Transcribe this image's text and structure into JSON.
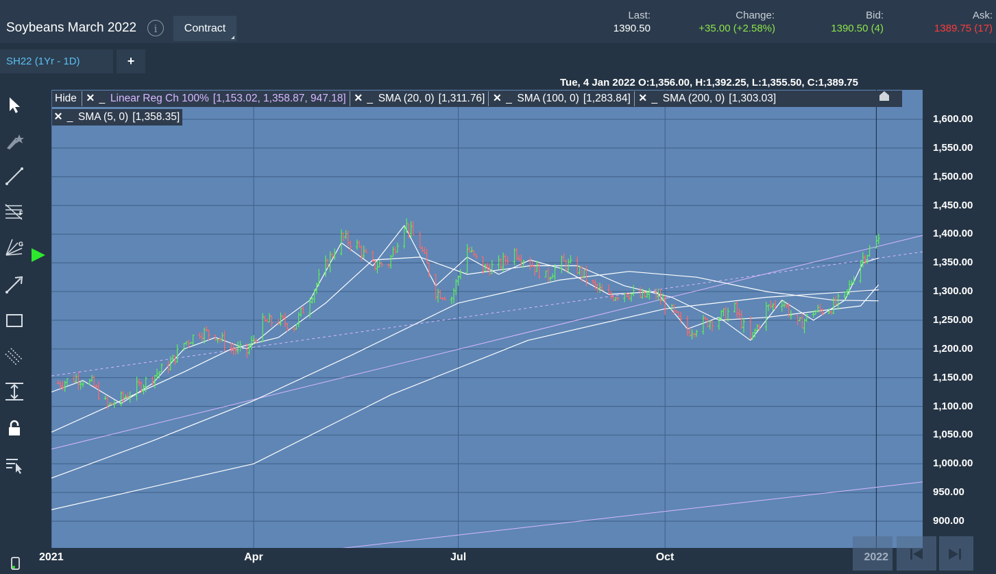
{
  "header": {
    "title": "Soybeans March 2022",
    "info_icon": "info-icon",
    "contract_label": "Contract",
    "last": {
      "label": "Last:",
      "value": "1390.50",
      "color": "#ffffff"
    },
    "change": {
      "label": "Change:",
      "value": "+35.00 (+2.58%)",
      "color": "#8ee34a"
    },
    "bid": {
      "label": "Bid:",
      "value": "1390.50 (4)",
      "color": "#8ee34a"
    },
    "ask": {
      "label": "Ask:",
      "value": "1389.75 (17)",
      "color": "#ff3b3b"
    }
  },
  "tabs": {
    "active": "SH22 (1Yr - 1D)",
    "add": "+"
  },
  "toolbar": [
    "pointer-icon",
    "pen-star-icon",
    "line-icon",
    "fib-icon",
    "gann-icon",
    "arrow-line-icon",
    "rectangle-icon",
    "channel-icon",
    "vertical-measure-icon",
    "lock-icon",
    "menu-pointer-icon"
  ],
  "ohlc": "Tue, 4 Jan 2022  O:1,356.00, H:1,392.25, L:1,355.50, C:1,389.75",
  "legend": {
    "hide": "Hide",
    "linreg": "Linear Reg Ch 100%",
    "linreg_vals": "[1,153.02, 1,358.87, 947.18]",
    "sma20": "SMA (20, 0)",
    "sma20_val": "[1,311.76]",
    "sma100": "SMA (100, 0)",
    "sma100_val": "[1,283.84]",
    "sma200": "SMA (200, 0)",
    "sma200_val": "[1,303.03]",
    "sma5": "SMA (5, 0)",
    "sma5_val": "[1,358.35]"
  },
  "chart_data": {
    "type": "ohlc",
    "yticks": [
      900,
      950,
      1000,
      1050,
      1100,
      1150,
      1200,
      1250,
      1300,
      1350,
      1400,
      1450,
      1500,
      1550,
      1600
    ],
    "ytick_labels": [
      "900.00",
      "950.00",
      "1,000.00",
      "1,050.00",
      "1,100.00",
      "1,150.00",
      "1,200.00",
      "1,250.00",
      "1,300.00",
      "1,350.00",
      "1,400.00",
      "1,450.00",
      "1,500.00",
      "1,550.00",
      "1,600.00"
    ],
    "ylim": [
      875,
      1630
    ],
    "xlim": [
      "2021-01-01",
      "2022-01-05"
    ],
    "xticks": [
      {
        "date": "2021-01-01",
        "label": "2021"
      },
      {
        "date": "2021-04-01",
        "label": "Apr"
      },
      {
        "date": "2021-07-01",
        "label": "Jul"
      },
      {
        "date": "2021-10-01",
        "label": "Oct"
      },
      {
        "date": "2022-01-03",
        "label": "2022"
      }
    ],
    "price_series": [
      [
        "2021-01-04",
        1140
      ],
      [
        "2021-01-12",
        1150
      ],
      [
        "2021-01-19",
        1140
      ],
      [
        "2021-01-26",
        1100
      ],
      [
        "2021-02-02",
        1115
      ],
      [
        "2021-02-09",
        1135
      ],
      [
        "2021-02-16",
        1155
      ],
      [
        "2021-02-23",
        1175
      ],
      [
        "2021-03-01",
        1210
      ],
      [
        "2021-03-08",
        1230
      ],
      [
        "2021-03-15",
        1225
      ],
      [
        "2021-03-22",
        1200
      ],
      [
        "2021-03-29",
        1195
      ],
      [
        "2021-04-05",
        1245
      ],
      [
        "2021-04-12",
        1250
      ],
      [
        "2021-04-19",
        1240
      ],
      [
        "2021-04-26",
        1290
      ],
      [
        "2021-05-03",
        1345
      ],
      [
        "2021-05-10",
        1395
      ],
      [
        "2021-05-17",
        1380
      ],
      [
        "2021-05-24",
        1345
      ],
      [
        "2021-05-31",
        1350
      ],
      [
        "2021-06-07",
        1420
      ],
      [
        "2021-06-14",
        1380
      ],
      [
        "2021-06-21",
        1300
      ],
      [
        "2021-06-28",
        1290
      ],
      [
        "2021-07-05",
        1375
      ],
      [
        "2021-07-12",
        1340
      ],
      [
        "2021-07-19",
        1345
      ],
      [
        "2021-07-26",
        1370
      ],
      [
        "2021-08-02",
        1350
      ],
      [
        "2021-08-09",
        1325
      ],
      [
        "2021-08-16",
        1350
      ],
      [
        "2021-08-23",
        1340
      ],
      [
        "2021-08-30",
        1310
      ],
      [
        "2021-09-06",
        1290
      ],
      [
        "2021-09-13",
        1300
      ],
      [
        "2021-09-20",
        1290
      ],
      [
        "2021-09-27",
        1295
      ],
      [
        "2021-10-04",
        1265
      ],
      [
        "2021-10-11",
        1230
      ],
      [
        "2021-10-18",
        1245
      ],
      [
        "2021-10-25",
        1255
      ],
      [
        "2021-11-01",
        1270
      ],
      [
        "2021-11-08",
        1215
      ],
      [
        "2021-11-15",
        1270
      ],
      [
        "2021-11-22",
        1285
      ],
      [
        "2021-11-29",
        1240
      ],
      [
        "2021-12-06",
        1265
      ],
      [
        "2021-12-13",
        1270
      ],
      [
        "2021-12-20",
        1290
      ],
      [
        "2021-12-27",
        1355
      ],
      [
        "2022-01-04",
        1389.75
      ]
    ],
    "sma5": [
      [
        "2021-01-01",
        1125
      ],
      [
        "2021-01-15",
        1145
      ],
      [
        "2021-02-01",
        1105
      ],
      [
        "2021-02-15",
        1140
      ],
      [
        "2021-03-01",
        1200
      ],
      [
        "2021-03-15",
        1220
      ],
      [
        "2021-03-29",
        1200
      ],
      [
        "2021-04-12",
        1245
      ],
      [
        "2021-04-26",
        1285
      ],
      [
        "2021-05-10",
        1385
      ],
      [
        "2021-05-24",
        1345
      ],
      [
        "2021-06-07",
        1415
      ],
      [
        "2021-06-21",
        1310
      ],
      [
        "2021-07-05",
        1360
      ],
      [
        "2021-07-19",
        1330
      ],
      [
        "2021-08-02",
        1355
      ],
      [
        "2021-08-16",
        1340
      ],
      [
        "2021-09-06",
        1295
      ],
      [
        "2021-09-27",
        1300
      ],
      [
        "2021-10-11",
        1235
      ],
      [
        "2021-10-25",
        1255
      ],
      [
        "2021-11-08",
        1215
      ],
      [
        "2021-11-22",
        1285
      ],
      [
        "2021-12-06",
        1250
      ],
      [
        "2021-12-20",
        1285
      ],
      [
        "2021-12-28",
        1350
      ],
      [
        "2022-01-04",
        1358.35
      ]
    ],
    "sma20": [
      [
        "2021-01-01",
        1055
      ],
      [
        "2021-02-01",
        1110
      ],
      [
        "2021-03-01",
        1160
      ],
      [
        "2021-03-22",
        1200
      ],
      [
        "2021-04-12",
        1220
      ],
      [
        "2021-05-03",
        1280
      ],
      [
        "2021-05-24",
        1355
      ],
      [
        "2021-06-14",
        1360
      ],
      [
        "2021-07-05",
        1330
      ],
      [
        "2021-08-02",
        1345
      ],
      [
        "2021-08-23",
        1345
      ],
      [
        "2021-09-13",
        1310
      ],
      [
        "2021-10-04",
        1290
      ],
      [
        "2021-10-25",
        1250
      ],
      [
        "2021-11-15",
        1255
      ],
      [
        "2021-12-06",
        1265
      ],
      [
        "2021-12-27",
        1275
      ],
      [
        "2022-01-04",
        1311.76
      ]
    ],
    "sma100": [
      [
        "2021-01-01",
        975
      ],
      [
        "2021-02-15",
        1040
      ],
      [
        "2021-04-01",
        1110
      ],
      [
        "2021-05-15",
        1190
      ],
      [
        "2021-07-01",
        1280
      ],
      [
        "2021-08-15",
        1320
      ],
      [
        "2021-09-15",
        1335
      ],
      [
        "2021-10-15",
        1325
      ],
      [
        "2021-11-15",
        1300
      ],
      [
        "2021-12-15",
        1285
      ],
      [
        "2022-01-04",
        1283.84
      ]
    ],
    "sma200": [
      [
        "2021-01-01",
        920
      ],
      [
        "2021-04-01",
        1000
      ],
      [
        "2021-06-01",
        1120
      ],
      [
        "2021-08-01",
        1215
      ],
      [
        "2021-10-01",
        1270
      ],
      [
        "2021-11-15",
        1290
      ],
      [
        "2022-01-04",
        1303.03
      ]
    ],
    "linreg": {
      "start": "2021-01-01",
      "end": "2022-01-05",
      "mid": [
        1153.02,
        1358.87
      ],
      "upper": [
        1025.5,
        1380
      ],
      "lower": [
        795,
        960
      ]
    },
    "markers": {
      "play_marker_value": 1350
    }
  }
}
